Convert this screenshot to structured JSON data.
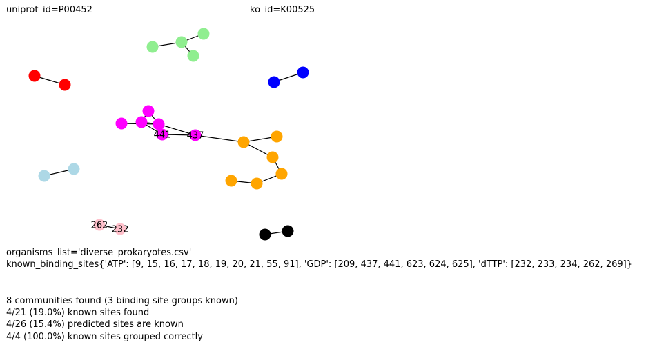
{
  "header": {
    "uniprot_text": "uniprot_id=P00452",
    "ko_text": "ko_id=K00525"
  },
  "info": {
    "organisms_line": "organisms_list='diverse_prokaryotes.csv'",
    "binding_sites_line": "known_binding_sites{'ATP': [9, 15, 16, 17, 18, 19, 20, 21, 55, 91], 'GDP': [209, 437, 441, 623, 624, 625], 'dTTP': [232, 233, 234, 262, 269]}"
  },
  "summary": {
    "line1": "8 communities found (3 binding site groups known)",
    "line2": "4/21 (19.0%) known sites found",
    "line3": "4/26 (15.4%) predicted sites are known",
    "line4": "4/4 (100.0%) known sites grouped correctly"
  },
  "colors": {
    "lightgreen": "#90ee90",
    "red": "#ff0000",
    "blue": "#0000ff",
    "magenta": "#ff00ff",
    "orange": "#ffa500",
    "lightblue": "#add8e6",
    "pink": "#ffc0cb",
    "black": "#000000",
    "edge": "#000000"
  },
  "graph": {
    "communities": [
      {
        "color": "lightgreen",
        "nodes": [
          {
            "id": "g1"
          },
          {
            "id": "g2"
          },
          {
            "id": "g3"
          },
          {
            "id": "g4"
          }
        ],
        "edges": [
          [
            "g1",
            "g2"
          ],
          [
            "g2",
            "g3"
          ],
          [
            "g2",
            "g4"
          ]
        ]
      },
      {
        "color": "red",
        "nodes": [
          {
            "id": "r1"
          },
          {
            "id": "r2"
          }
        ],
        "edges": [
          [
            "r1",
            "r2"
          ]
        ]
      },
      {
        "color": "blue",
        "nodes": [
          {
            "id": "b1"
          },
          {
            "id": "b2"
          }
        ],
        "edges": [
          [
            "b1",
            "b2"
          ]
        ]
      },
      {
        "color": "magenta",
        "nodes": [
          {
            "id": "m1"
          },
          {
            "id": "m2"
          },
          {
            "id": "m3"
          },
          {
            "id": "m4"
          },
          {
            "id": "m441",
            "label": "441"
          },
          {
            "id": "m437",
            "label": "437"
          }
        ],
        "edges": [
          [
            "m1",
            "m3"
          ],
          [
            "m2",
            "m3"
          ],
          [
            "m2",
            "m4"
          ],
          [
            "m3",
            "m4"
          ],
          [
            "m4",
            "m441"
          ],
          [
            "m3",
            "m437"
          ],
          [
            "m441",
            "m437"
          ]
        ]
      },
      {
        "color": "orange",
        "nodes": [
          {
            "id": "o1"
          },
          {
            "id": "o2"
          },
          {
            "id": "o3"
          },
          {
            "id": "o4"
          },
          {
            "id": "o5"
          },
          {
            "id": "o6"
          }
        ],
        "edges": [
          [
            "o1",
            "o2"
          ],
          [
            "o1",
            "o3"
          ],
          [
            "o3",
            "o4"
          ],
          [
            "o4",
            "o5"
          ],
          [
            "o5",
            "o6"
          ]
        ]
      },
      {
        "color": "lightblue",
        "nodes": [
          {
            "id": "lb1"
          },
          {
            "id": "lb2"
          }
        ],
        "edges": [
          [
            "lb1",
            "lb2"
          ]
        ]
      },
      {
        "color": "pink",
        "nodes": [
          {
            "id": "p262",
            "label": "262"
          },
          {
            "id": "p232",
            "label": "232"
          }
        ],
        "edges": [
          [
            "p262",
            "p232"
          ]
        ]
      },
      {
        "color": "black",
        "nodes": [
          {
            "id": "k1"
          },
          {
            "id": "k2"
          }
        ],
        "edges": [
          [
            "k1",
            "k2"
          ]
        ]
      }
    ],
    "bridges": [
      [
        "m437",
        "o1"
      ]
    ]
  }
}
